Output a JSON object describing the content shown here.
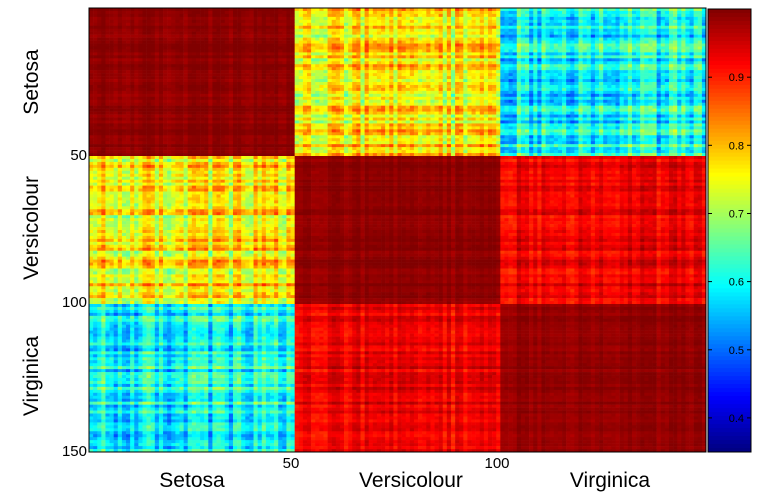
{
  "chart_data": {
    "type": "heatmap",
    "title": "",
    "matrix_size": 150,
    "classes": [
      "Setosa",
      "Versicolour",
      "Virginica"
    ],
    "class_size": 50,
    "block_mean_similarity": [
      [
        0.99,
        0.76,
        0.6
      ],
      [
        0.76,
        0.99,
        0.93
      ],
      [
        0.6,
        0.93,
        0.99
      ]
    ],
    "x_ticks": [
      50,
      100
    ],
    "y_ticks": [
      50,
      100,
      150
    ],
    "colorbar": {
      "colormap": "jet",
      "range": [
        0.35,
        1.0
      ],
      "ticks": [
        0.4,
        0.5,
        0.6,
        0.7,
        0.8,
        0.9
      ],
      "tick_labels": [
        "0.4",
        "0.5",
        "0.6",
        "0.7",
        "0.8",
        "0.9"
      ]
    }
  }
}
